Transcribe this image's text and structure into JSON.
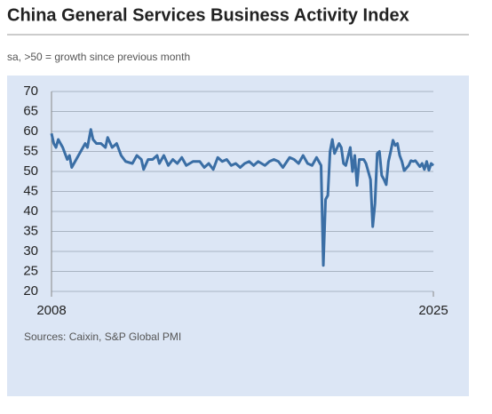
{
  "chart_data": {
    "type": "line",
    "title": "China General Services Business Activity Index",
    "subtitle": "sa, >50 = growth since previous month",
    "source": "Sources: Caixin, S&P Global PMI",
    "xlim": [
      2008,
      2025
    ],
    "xticks": [
      2008,
      2025
    ],
    "ylim": [
      20,
      70
    ],
    "yticks": [
      20,
      25,
      30,
      35,
      40,
      45,
      50,
      55,
      60,
      65,
      70
    ],
    "grid": true,
    "x": [
      2008.0,
      2008.1,
      2008.2,
      2008.3,
      2008.5,
      2008.7,
      2008.8,
      2008.9,
      2009.1,
      2009.3,
      2009.5,
      2009.6,
      2009.75,
      2009.85,
      2010.0,
      2010.2,
      2010.4,
      2010.5,
      2010.7,
      2010.9,
      2011.1,
      2011.3,
      2011.6,
      2011.8,
      2012.0,
      2012.1,
      2012.3,
      2012.5,
      2012.7,
      2012.8,
      2013.0,
      2013.2,
      2013.4,
      2013.6,
      2013.8,
      2014.0,
      2014.3,
      2014.6,
      2014.8,
      2015.0,
      2015.2,
      2015.4,
      2015.6,
      2015.8,
      2016.0,
      2016.2,
      2016.4,
      2016.6,
      2016.8,
      2017.0,
      2017.2,
      2017.5,
      2017.7,
      2017.9,
      2018.1,
      2018.3,
      2018.6,
      2018.8,
      2019.0,
      2019.2,
      2019.4,
      2019.6,
      2019.8,
      2020.0,
      2020.1,
      2020.2,
      2020.3,
      2020.4,
      2020.5,
      2020.6,
      2020.8,
      2020.9,
      2021.0,
      2021.1,
      2021.3,
      2021.4,
      2021.5,
      2021.6,
      2021.7,
      2021.9,
      2022.0,
      2022.2,
      2022.3,
      2022.4,
      2022.5,
      2022.6,
      2022.7,
      2022.8,
      2022.9,
      2023.0,
      2023.1,
      2023.2,
      2023.3,
      2023.4,
      2023.5,
      2023.6,
      2023.7,
      2023.9,
      2024.0,
      2024.1,
      2024.2,
      2024.4,
      2024.5,
      2024.6,
      2024.7,
      2024.8,
      2024.9,
      2025.0
    ],
    "series": [
      {
        "color": "#3a6ea5",
        "values": [
          59.5,
          57,
          56,
          58,
          56,
          53,
          54,
          51,
          53,
          55,
          57,
          56,
          60.5,
          58,
          57,
          57,
          56,
          58.5,
          56,
          57,
          54,
          52.5,
          52,
          54,
          53,
          50.5,
          53,
          53,
          54,
          52,
          54,
          51.5,
          53,
          52,
          53.5,
          51.5,
          52.5,
          52.5,
          51,
          52,
          50.5,
          53.5,
          52.5,
          53,
          51.5,
          52,
          51,
          52,
          52.5,
          51.5,
          52.5,
          51.5,
          52.5,
          53,
          52.5,
          51,
          53.5,
          53,
          52,
          54,
          52,
          51.5,
          53.5,
          51.5,
          26.5,
          43,
          44,
          55,
          58,
          54.5,
          57,
          56,
          52,
          51.5,
          56,
          50,
          54,
          46.5,
          53,
          53,
          52,
          48,
          36.2,
          42,
          54.5,
          55,
          49,
          48,
          46.7,
          52.5,
          55,
          57.8,
          56.5,
          57,
          54,
          52.5,
          50.2,
          51.5,
          52.7,
          52.5,
          52.7,
          51.2,
          52,
          50.5,
          52.5,
          50.3,
          52,
          51.5
        ]
      }
    ]
  }
}
